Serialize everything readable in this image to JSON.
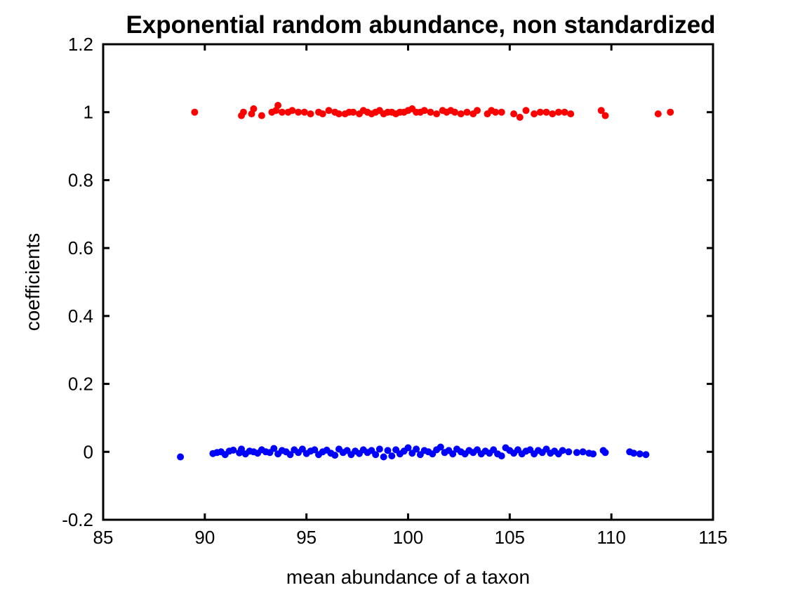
{
  "chart_data": {
    "type": "scatter",
    "title": "Exponential random abundance, non standardized",
    "xlabel": "mean abundance of a taxon",
    "ylabel": "coefficients",
    "xlim": [
      85,
      115
    ],
    "ylim": [
      -0.2,
      1.2
    ],
    "xticks": [
      85,
      90,
      95,
      100,
      105,
      110,
      115
    ],
    "yticks": [
      -0.2,
      0,
      0.2,
      0.4,
      0.6,
      0.8,
      1,
      1.2
    ],
    "xtick_labels": [
      "85",
      "90",
      "95",
      "100",
      "105",
      "110",
      "115"
    ],
    "ytick_labels": [
      "-0.2",
      "0",
      "0.2",
      "0.4",
      "0.6",
      "0.8",
      "1",
      "1.2"
    ],
    "grid": false,
    "series": [
      {
        "color": "#ff0000",
        "points": [
          [
            89.5,
            1.0
          ],
          [
            91.8,
            0.99
          ],
          [
            91.9,
            1.0
          ],
          [
            92.3,
            0.995
          ],
          [
            92.4,
            1.01
          ],
          [
            92.8,
            0.99
          ],
          [
            93.3,
            1.0
          ],
          [
            93.5,
            1.005
          ],
          [
            93.6,
            1.02
          ],
          [
            93.8,
            1.0
          ],
          [
            94.1,
            1.0
          ],
          [
            94.3,
            1.005
          ],
          [
            94.6,
            1.0
          ],
          [
            94.9,
            1.0
          ],
          [
            95.2,
            0.995
          ],
          [
            95.6,
            1.0
          ],
          [
            95.8,
            0.995
          ],
          [
            96.1,
            1.005
          ],
          [
            96.4,
            1.0
          ],
          [
            96.6,
            0.995
          ],
          [
            96.9,
            0.995
          ],
          [
            97.1,
            1.0
          ],
          [
            97.3,
            1.0
          ],
          [
            97.6,
            0.995
          ],
          [
            97.8,
            1.005
          ],
          [
            98.0,
            1.0
          ],
          [
            98.2,
            0.995
          ],
          [
            98.4,
            1.0
          ],
          [
            98.6,
            1.005
          ],
          [
            98.8,
            0.995
          ],
          [
            99.0,
            1.0
          ],
          [
            99.2,
            1.0
          ],
          [
            99.4,
            0.995
          ],
          [
            99.6,
            1.0
          ],
          [
            99.8,
            1.0
          ],
          [
            100.0,
            1.005
          ],
          [
            100.2,
            1.01
          ],
          [
            100.4,
            1.0
          ],
          [
            100.6,
            1.0
          ],
          [
            100.8,
            1.005
          ],
          [
            101.1,
            1.0
          ],
          [
            101.4,
            0.995
          ],
          [
            101.7,
            1.005
          ],
          [
            101.9,
            1.0
          ],
          [
            102.1,
            1.005
          ],
          [
            102.3,
            1.0
          ],
          [
            102.6,
            0.995
          ],
          [
            102.9,
            1.0
          ],
          [
            103.2,
            0.995
          ],
          [
            103.4,
            1.005
          ],
          [
            103.9,
            0.995
          ],
          [
            104.1,
            1.005
          ],
          [
            104.3,
            1.0
          ],
          [
            104.6,
            1.0
          ],
          [
            105.2,
            0.995
          ],
          [
            105.5,
            0.985
          ],
          [
            105.8,
            1.005
          ],
          [
            106.2,
            0.995
          ],
          [
            106.5,
            1.0
          ],
          [
            106.8,
            1.0
          ],
          [
            107.1,
            0.995
          ],
          [
            107.4,
            1.0
          ],
          [
            107.7,
            1.0
          ],
          [
            108.0,
            0.995
          ],
          [
            109.5,
            1.005
          ],
          [
            109.7,
            0.99
          ],
          [
            112.3,
            0.995
          ],
          [
            112.9,
            1.0
          ]
        ]
      },
      {
        "color": "#0000ff",
        "points": [
          [
            88.8,
            -0.015
          ],
          [
            90.4,
            -0.005
          ],
          [
            90.6,
            -0.002
          ],
          [
            90.8,
            0.0
          ],
          [
            91.0,
            -0.008
          ],
          [
            91.2,
            0.002
          ],
          [
            91.4,
            0.005
          ],
          [
            91.7,
            -0.003
          ],
          [
            91.8,
            0.008
          ],
          [
            92.0,
            -0.006
          ],
          [
            92.2,
            0.002
          ],
          [
            92.4,
            0.0
          ],
          [
            92.6,
            -0.004
          ],
          [
            92.8,
            0.006
          ],
          [
            93.0,
            0.0
          ],
          [
            93.2,
            -0.002
          ],
          [
            93.4,
            0.01
          ],
          [
            93.6,
            -0.006
          ],
          [
            93.8,
            0.004
          ],
          [
            94.0,
            0.0
          ],
          [
            94.2,
            -0.008
          ],
          [
            94.4,
            0.006
          ],
          [
            94.6,
            -0.002
          ],
          [
            94.8,
            0.008
          ],
          [
            95.0,
            -0.005
          ],
          [
            95.2,
            0.002
          ],
          [
            95.4,
            0.006
          ],
          [
            95.6,
            -0.008
          ],
          [
            95.8,
            0.0
          ],
          [
            96.0,
            0.005
          ],
          [
            96.2,
            -0.004
          ],
          [
            96.4,
            -0.01
          ],
          [
            96.6,
            0.008
          ],
          [
            96.8,
            -0.002
          ],
          [
            97.0,
            0.004
          ],
          [
            97.2,
            -0.008
          ],
          [
            97.4,
            0.002
          ],
          [
            97.6,
            -0.005
          ],
          [
            97.8,
            0.006
          ],
          [
            98.0,
            -0.002
          ],
          [
            98.2,
            0.004
          ],
          [
            98.4,
            -0.008
          ],
          [
            98.6,
            0.008
          ],
          [
            98.8,
            -0.015
          ],
          [
            99.0,
            0.004
          ],
          [
            99.2,
            -0.012
          ],
          [
            99.4,
            0.006
          ],
          [
            99.6,
            -0.006
          ],
          [
            99.8,
            0.002
          ],
          [
            100.0,
            0.012
          ],
          [
            100.2,
            -0.004
          ],
          [
            100.4,
            0.008
          ],
          [
            100.6,
            -0.008
          ],
          [
            100.8,
            0.004
          ],
          [
            101.0,
            0.0
          ],
          [
            101.2,
            -0.006
          ],
          [
            101.4,
            0.006
          ],
          [
            101.6,
            0.014
          ],
          [
            101.8,
            -0.002
          ],
          [
            102.0,
            0.004
          ],
          [
            102.2,
            -0.006
          ],
          [
            102.4,
            0.008
          ],
          [
            102.6,
            0.0
          ],
          [
            102.8,
            -0.006
          ],
          [
            103.0,
            0.004
          ],
          [
            103.2,
            -0.002
          ],
          [
            103.4,
            0.006
          ],
          [
            103.6,
            -0.006
          ],
          [
            103.8,
            0.002
          ],
          [
            104.0,
            -0.004
          ],
          [
            104.2,
            0.006
          ],
          [
            104.4,
            -0.006
          ],
          [
            104.6,
            -0.012
          ],
          [
            104.8,
            0.012
          ],
          [
            105.0,
            0.004
          ],
          [
            105.2,
            -0.004
          ],
          [
            105.4,
            0.006
          ],
          [
            105.6,
            -0.006
          ],
          [
            105.8,
            0.002
          ],
          [
            106.0,
            0.006
          ],
          [
            106.2,
            -0.006
          ],
          [
            106.4,
            0.004
          ],
          [
            106.6,
            -0.002
          ],
          [
            106.8,
            0.008
          ],
          [
            107.0,
            -0.004
          ],
          [
            107.2,
            0.002
          ],
          [
            107.4,
            -0.006
          ],
          [
            107.6,
            0.004
          ],
          [
            107.9,
            0.0
          ],
          [
            108.3,
            -0.002
          ],
          [
            108.6,
            0.0
          ],
          [
            108.9,
            -0.004
          ],
          [
            109.1,
            -0.006
          ],
          [
            109.6,
            0.004
          ],
          [
            109.7,
            -0.002
          ],
          [
            110.9,
            0.0
          ],
          [
            111.1,
            -0.004
          ],
          [
            111.4,
            -0.006
          ],
          [
            111.7,
            -0.008
          ]
        ]
      }
    ]
  }
}
